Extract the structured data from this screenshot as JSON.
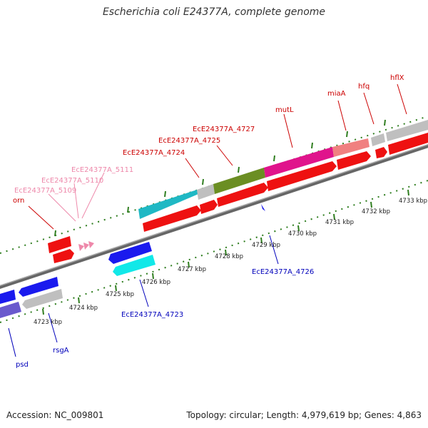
{
  "title": "Escherichia coli E24377A, complete genome",
  "footer": {
    "accession": "Accession: NC_009801",
    "topology": "Topology: circular; Length: 4,979,619 bp; Genes: 4,863"
  },
  "colors": {
    "forward_label": "#cc0000",
    "pseudo_label": "#ee88aa",
    "reverse_label": "#0000bb",
    "tick": "#2e7d1e",
    "backbone": "#888888"
  },
  "forward_labels": [
    {
      "text": "orn",
      "kind": "gene"
    },
    {
      "text": "EcE24377A_5109",
      "kind": "pseudo"
    },
    {
      "text": "EcE24377A_5110",
      "kind": "pseudo"
    },
    {
      "text": "EcE24377A_5111",
      "kind": "pseudo"
    },
    {
      "text": "EcE24377A_4724",
      "kind": "gene"
    },
    {
      "text": "EcE24377A_4725",
      "kind": "gene"
    },
    {
      "text": "EcE24377A_4727",
      "kind": "gene"
    },
    {
      "text": "mutL",
      "kind": "gene"
    },
    {
      "text": "miaA",
      "kind": "gene"
    },
    {
      "text": "hfq",
      "kind": "gene"
    },
    {
      "text": "hflX",
      "kind": "gene"
    }
  ],
  "reverse_labels": [
    {
      "text": "psd"
    },
    {
      "text": "rsgA"
    },
    {
      "text": "EcE24377A_4723"
    },
    {
      "text": "EcE24377A_4726"
    }
  ],
  "kbp_labels": [
    "4723 kbp",
    "4724 kbp",
    "4725 kbp",
    "4726 kbp",
    "4727 kbp",
    "4728 kbp",
    "4729 kbp",
    "4730 kbp",
    "4731 kbp",
    "4732 kbp",
    "4733 kbp"
  ]
}
